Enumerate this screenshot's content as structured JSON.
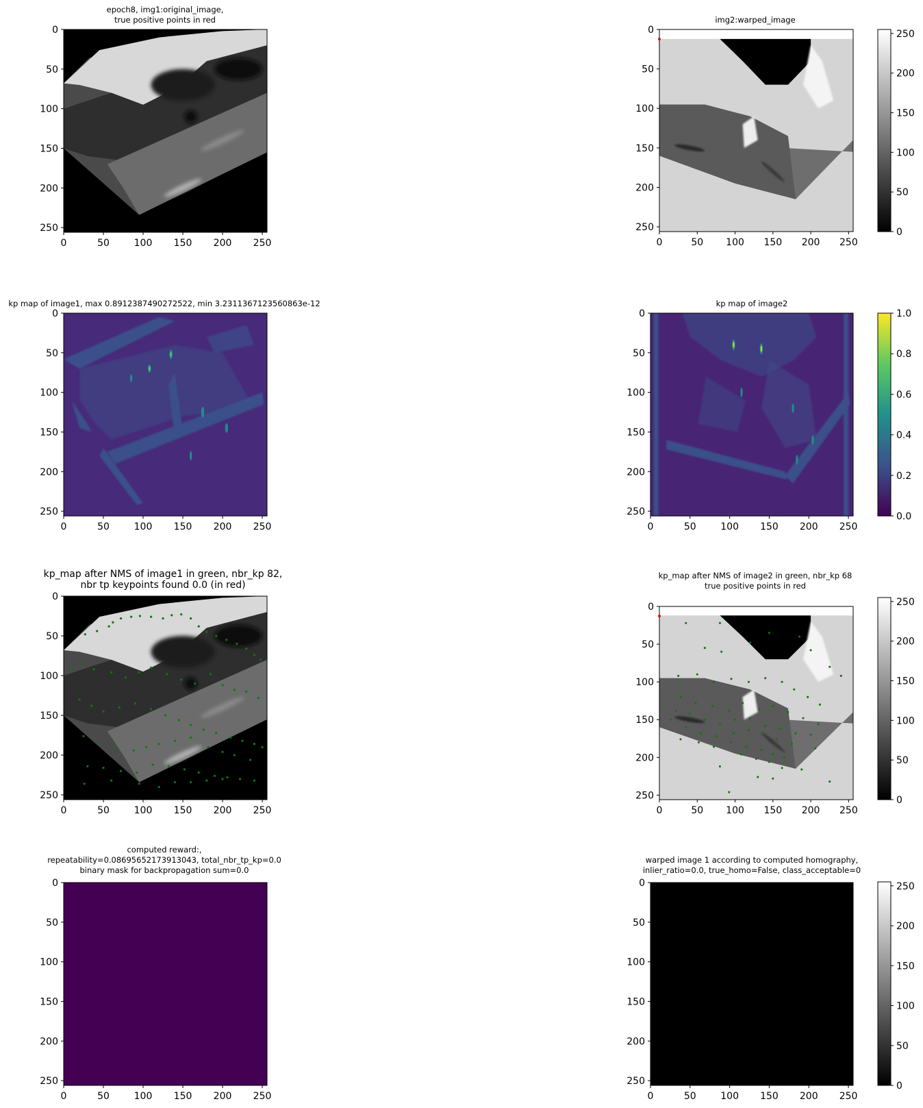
{
  "colors": {
    "frame": "#000000",
    "viridis_low": "#440154",
    "viridis_mid": "#21918c",
    "viridis_high": "#fde725",
    "keypoint_green": "#0a7a0a",
    "tp_red": "#e01010",
    "light_gray": "#d4d4d4",
    "black": "#000000"
  },
  "chart_data": [
    {
      "type": "heatmap",
      "id": "p1",
      "title_lines": [
        "epoch8, img1:original_image,",
        "true positive points in red"
      ],
      "xticks": [
        0,
        50,
        100,
        150,
        200,
        250
      ],
      "yticks": [
        0,
        50,
        100,
        150,
        200,
        250
      ],
      "xlim": [
        0,
        256
      ],
      "ylim": [
        256,
        0
      ],
      "image": "grayscale street scene rotated (warped) with black border",
      "colorbar": null
    },
    {
      "type": "heatmap",
      "id": "p2",
      "title_lines": [
        "img2:warped_image"
      ],
      "xticks": [
        0,
        50,
        100,
        150,
        200,
        250
      ],
      "yticks": [
        0,
        50,
        100,
        150,
        200,
        250
      ],
      "xlim": [
        0,
        256
      ],
      "ylim": [
        256,
        0
      ],
      "image": "grayscale warped street scene on light gray background",
      "colorbar": {
        "cmap": "gray",
        "ticks": [
          0,
          50,
          100,
          150,
          200,
          250
        ],
        "range": [
          0,
          255
        ]
      },
      "tp_points": [
        [
          0,
          0
        ]
      ]
    },
    {
      "type": "heatmap",
      "id": "p3",
      "title_lines": [
        "kp map of image1, max 0.8912387490272522, min 3.2311367123560863e-12"
      ],
      "xticks": [
        0,
        50,
        100,
        150,
        200,
        250
      ],
      "yticks": [
        0,
        50,
        100,
        150,
        200,
        250
      ],
      "xlim": [
        0,
        256
      ],
      "ylim": [
        256,
        0
      ],
      "image": "viridis keypoint probability map",
      "colorbar": null
    },
    {
      "type": "heatmap",
      "id": "p4",
      "title_lines": [
        "kp map of image2"
      ],
      "xticks": [
        0,
        50,
        100,
        150,
        200,
        250
      ],
      "yticks": [
        0,
        50,
        100,
        150,
        200,
        250
      ],
      "xlim": [
        0,
        256
      ],
      "ylim": [
        256,
        0
      ],
      "image": "viridis keypoint probability map",
      "colorbar": {
        "cmap": "viridis",
        "ticks": [
          "0.0",
          "0.2",
          "0.4",
          "0.6",
          "0.8",
          "1.0"
        ],
        "range": [
          0,
          1
        ]
      }
    },
    {
      "type": "scatter",
      "id": "p5",
      "title_lines": [
        "kp_map after NMS of image1 in green, nbr_kp 82,",
        "nbr tp keypoints found 0.0 (in red)"
      ],
      "xticks": [
        0,
        50,
        100,
        150,
        200,
        250
      ],
      "yticks": [
        0,
        50,
        100,
        150,
        200,
        250
      ],
      "xlim": [
        0,
        256
      ],
      "ylim": [
        256,
        0
      ],
      "image": "grayscale img1 with green keypoints",
      "colorbar": null,
      "keypoints": [
        [
          27,
          48
        ],
        [
          42,
          44
        ],
        [
          57,
          38
        ],
        [
          62,
          33
        ],
        [
          72,
          28
        ],
        [
          85,
          26
        ],
        [
          96,
          25
        ],
        [
          110,
          26
        ],
        [
          125,
          28
        ],
        [
          136,
          24
        ],
        [
          148,
          23
        ],
        [
          160,
          28
        ],
        [
          170,
          38
        ],
        [
          180,
          45
        ],
        [
          192,
          50
        ],
        [
          205,
          55
        ],
        [
          218,
          60
        ],
        [
          230,
          66
        ],
        [
          240,
          74
        ],
        [
          248,
          80
        ],
        [
          10,
          90
        ],
        [
          24,
          88
        ],
        [
          38,
          92
        ],
        [
          60,
          96
        ],
        [
          78,
          102
        ],
        [
          95,
          96
        ],
        [
          110,
          90
        ],
        [
          130,
          98
        ],
        [
          148,
          105
        ],
        [
          165,
          110
        ],
        [
          185,
          98
        ],
        [
          200,
          112
        ],
        [
          215,
          118
        ],
        [
          230,
          120
        ],
        [
          245,
          128
        ],
        [
          20,
          130
        ],
        [
          35,
          138
        ],
        [
          50,
          145
        ],
        [
          70,
          140
        ],
        [
          90,
          135
        ],
        [
          110,
          142
        ],
        [
          128,
          150
        ],
        [
          145,
          156
        ],
        [
          160,
          162
        ],
        [
          176,
          168
        ],
        [
          192,
          172
        ],
        [
          210,
          178
        ],
        [
          225,
          182
        ],
        [
          240,
          186
        ],
        [
          250,
          190
        ],
        [
          25,
          176
        ],
        [
          45,
          182
        ],
        [
          65,
          188
        ],
        [
          88,
          194
        ],
        [
          104,
          190
        ],
        [
          120,
          186
        ],
        [
          140,
          182
        ],
        [
          160,
          178
        ],
        [
          182,
          190
        ],
        [
          200,
          196
        ],
        [
          215,
          200
        ],
        [
          235,
          206
        ],
        [
          30,
          214
        ],
        [
          50,
          216
        ],
        [
          72,
          220
        ],
        [
          92,
          222
        ],
        [
          112,
          212
        ],
        [
          132,
          214
        ],
        [
          152,
          218
        ],
        [
          170,
          222
        ],
        [
          190,
          226
        ],
        [
          206,
          228
        ],
        [
          222,
          230
        ],
        [
          240,
          232
        ],
        [
          26,
          236
        ],
        [
          60,
          232
        ],
        [
          95,
          236
        ],
        [
          120,
          240
        ],
        [
          140,
          234
        ],
        [
          160,
          234
        ],
        [
          180,
          232
        ],
        [
          200,
          230
        ]
      ]
    },
    {
      "type": "scatter",
      "id": "p6",
      "title_lines": [
        "kp_map after NMS of image2 in green, nbr_kp 68",
        "true positive points in red"
      ],
      "xticks": [
        0,
        50,
        100,
        150,
        200,
        250
      ],
      "yticks": [
        0,
        50,
        100,
        150,
        200,
        250
      ],
      "xlim": [
        0,
        256
      ],
      "ylim": [
        256,
        0
      ],
      "image": "grayscale img2 with green keypoints",
      "colorbar": {
        "cmap": "gray",
        "ticks": [
          0,
          50,
          100,
          150,
          200,
          250
        ],
        "range": [
          0,
          255
        ]
      },
      "tp_points": [
        [
          0,
          0
        ]
      ],
      "keypoints": [
        [
          35,
          22
        ],
        [
          80,
          22
        ],
        [
          60,
          55
        ],
        [
          82,
          60
        ],
        [
          120,
          48
        ],
        [
          145,
          35
        ],
        [
          185,
          40
        ],
        [
          200,
          58
        ],
        [
          225,
          80
        ],
        [
          240,
          92
        ],
        [
          25,
          92
        ],
        [
          50,
          90
        ],
        [
          72,
          100
        ],
        [
          95,
          96
        ],
        [
          118,
          100
        ],
        [
          140,
          95
        ],
        [
          162,
          100
        ],
        [
          178,
          110
        ],
        [
          196,
          120
        ],
        [
          212,
          130
        ],
        [
          28,
          120
        ],
        [
          48,
          128
        ],
        [
          70,
          132
        ],
        [
          92,
          138
        ],
        [
          110,
          128
        ],
        [
          132,
          136
        ],
        [
          150,
          132
        ],
        [
          170,
          140
        ],
        [
          190,
          148
        ],
        [
          210,
          156
        ],
        [
          22,
          138
        ],
        [
          40,
          142
        ],
        [
          60,
          150
        ],
        [
          80,
          156
        ],
        [
          100,
          150
        ],
        [
          120,
          148
        ],
        [
          140,
          158
        ],
        [
          160,
          162
        ],
        [
          180,
          168
        ],
        [
          200,
          170
        ],
        [
          15,
          150
        ],
        [
          35,
          160
        ],
        [
          55,
          168
        ],
        [
          76,
          172
        ],
        [
          98,
          168
        ],
        [
          118,
          164
        ],
        [
          136,
          170
        ],
        [
          155,
          176
        ],
        [
          175,
          182
        ],
        [
          28,
          176
        ],
        [
          52,
          180
        ],
        [
          72,
          186
        ],
        [
          95,
          180
        ],
        [
          115,
          186
        ],
        [
          135,
          190
        ],
        [
          150,
          196
        ],
        [
          165,
          200
        ],
        [
          80,
          212
        ],
        [
          108,
          196
        ],
        [
          128,
          202
        ],
        [
          145,
          206
        ],
        [
          162,
          214
        ],
        [
          130,
          226
        ],
        [
          150,
          228
        ],
        [
          225,
          232
        ],
        [
          92,
          246
        ],
        [
          188,
          216
        ],
        [
          206,
          188
        ]
      ]
    },
    {
      "type": "heatmap",
      "id": "p7",
      "title_lines": [
        "computed reward:,",
        "repeatability=0.08695652173913043, total_nbr_tp_kp=0.0",
        "binary mask for backpropagation sum=0.0"
      ],
      "xticks": [
        0,
        50,
        100,
        150,
        200,
        250
      ],
      "yticks": [
        0,
        50,
        100,
        150,
        200,
        250
      ],
      "xlim": [
        0,
        256
      ],
      "ylim": [
        256,
        0
      ],
      "image": "uniform viridis minimum (all zeros)",
      "colorbar": null
    },
    {
      "type": "heatmap",
      "id": "p8",
      "title_lines": [
        "warped image 1 according to computed homography,",
        "inlier_ratio=0.0, true_homo=False, class_acceptable=0"
      ],
      "xticks": [
        0,
        50,
        100,
        150,
        200,
        250
      ],
      "yticks": [
        0,
        50,
        100,
        150,
        200,
        250
      ],
      "xlim": [
        0,
        256
      ],
      "ylim": [
        256,
        0
      ],
      "image": "uniform black",
      "colorbar": {
        "cmap": "gray",
        "ticks": [
          0,
          50,
          100,
          150,
          200,
          250
        ],
        "range": [
          0,
          255
        ]
      }
    }
  ]
}
